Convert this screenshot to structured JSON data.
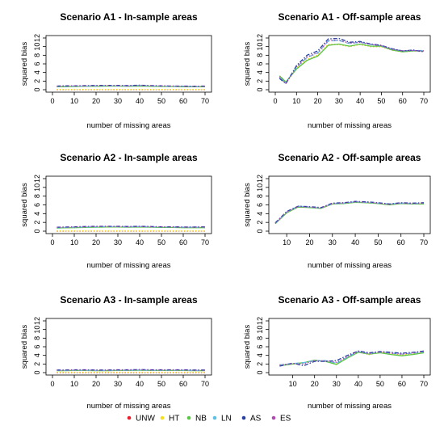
{
  "chart_data": [
    {
      "type": "line",
      "title": "Scenario A1 - In-sample areas",
      "xlabel": "number of missing areas",
      "ylabel": "squared bias",
      "xlim": [
        0,
        70
      ],
      "ylim": [
        0,
        12
      ],
      "xticks": [
        0,
        10,
        20,
        30,
        40,
        50,
        60,
        70
      ],
      "yticks": [
        0,
        2,
        4,
        6,
        8,
        10,
        12
      ],
      "x": [
        2,
        5,
        10,
        15,
        20,
        25,
        30,
        35,
        40,
        45,
        50,
        55,
        60,
        65,
        70
      ],
      "series": [
        {
          "key": "UNW",
          "values": [
            0.0,
            0.0,
            0.0,
            0.0,
            0.0,
            0.0,
            0.0,
            0.0,
            0.0,
            0.0,
            0.0,
            0.0,
            0.0,
            0.0,
            0.0
          ]
        },
        {
          "key": "HT",
          "values": [
            0.05,
            0.05,
            0.05,
            0.05,
            0.05,
            0.05,
            0.05,
            0.05,
            0.05,
            0.05,
            0.05,
            0.05,
            0.05,
            0.05,
            0.05
          ]
        },
        {
          "key": "NB",
          "values": [
            0.7,
            0.7,
            0.75,
            0.8,
            0.8,
            0.85,
            0.85,
            0.8,
            0.85,
            0.8,
            0.75,
            0.75,
            0.7,
            0.7,
            0.7
          ]
        },
        {
          "key": "LN",
          "values": [
            0.75,
            0.8,
            0.85,
            0.85,
            0.9,
            0.95,
            0.9,
            0.9,
            1.0,
            0.9,
            0.85,
            0.8,
            0.8,
            0.75,
            0.75
          ]
        },
        {
          "key": "AS",
          "values": [
            0.85,
            0.9,
            0.9,
            0.95,
            1.0,
            1.0,
            1.0,
            0.95,
            1.05,
            0.95,
            0.9,
            0.85,
            0.85,
            0.8,
            0.85
          ]
        },
        {
          "key": "ES",
          "values": [
            0.8,
            0.85,
            0.9,
            0.9,
            0.95,
            1.0,
            0.95,
            0.9,
            1.0,
            0.95,
            0.9,
            0.85,
            0.8,
            0.8,
            0.8
          ]
        }
      ]
    },
    {
      "type": "line",
      "title": "Scenario A1 - Off-sample areas",
      "xlabel": "number of missing areas",
      "ylabel": "squared bias",
      "xlim": [
        0,
        70
      ],
      "ylim": [
        0,
        12
      ],
      "xticks": [
        0,
        10,
        20,
        30,
        40,
        50,
        60,
        70
      ],
      "yticks": [
        0,
        2,
        4,
        6,
        8,
        10,
        12
      ],
      "x": [
        2,
        5,
        10,
        15,
        20,
        25,
        30,
        35,
        40,
        45,
        50,
        55,
        60,
        65,
        70
      ],
      "series": [
        {
          "key": "UNW",
          "values": [
            3.0,
            1.5,
            5.0,
            7.0,
            8.0,
            10.5,
            10.5,
            10.0,
            10.5,
            10.0,
            10.0,
            9.2,
            8.8,
            9.0,
            9.0
          ]
        },
        {
          "key": "HT",
          "values": [
            3.0,
            1.5,
            5.0,
            7.0,
            8.0,
            10.5,
            10.5,
            10.0,
            10.5,
            10.0,
            10.0,
            9.2,
            8.8,
            9.0,
            9.0
          ]
        },
        {
          "key": "NB",
          "values": [
            3.2,
            1.8,
            4.8,
            6.8,
            7.8,
            10.3,
            10.6,
            10.1,
            10.6,
            10.1,
            10.1,
            9.2,
            8.8,
            9.0,
            9.0
          ]
        },
        {
          "key": "LN",
          "values": [
            2.8,
            1.6,
            5.2,
            7.5,
            8.5,
            11.3,
            11.4,
            10.7,
            11.0,
            10.5,
            10.2,
            9.4,
            9.0,
            9.1,
            9.1
          ]
        },
        {
          "key": "AS",
          "values": [
            2.6,
            1.4,
            5.6,
            8.0,
            9.0,
            11.8,
            11.9,
            11.0,
            11.2,
            10.6,
            10.3,
            9.5,
            9.0,
            9.2,
            8.8
          ]
        },
        {
          "key": "ES",
          "values": [
            3.0,
            1.5,
            5.3,
            7.6,
            8.6,
            11.4,
            11.5,
            10.8,
            11.0,
            10.5,
            10.2,
            9.4,
            9.0,
            9.1,
            9.0
          ]
        }
      ]
    },
    {
      "type": "line",
      "title": "Scenario A2 - In-sample areas",
      "xlabel": "number of missing areas",
      "ylabel": "squared bias",
      "xlim": [
        0,
        70
      ],
      "ylim": [
        0,
        12
      ],
      "xticks": [
        0,
        10,
        20,
        30,
        40,
        50,
        60,
        70
      ],
      "yticks": [
        0,
        2,
        4,
        6,
        8,
        10,
        12
      ],
      "x": [
        2,
        5,
        10,
        15,
        20,
        25,
        30,
        35,
        40,
        45,
        50,
        55,
        60,
        65,
        70
      ],
      "series": [
        {
          "key": "UNW",
          "values": [
            0.0,
            0.0,
            0.0,
            0.0,
            0.0,
            0.0,
            0.0,
            0.0,
            0.0,
            0.0,
            0.0,
            0.0,
            0.0,
            0.0,
            0.0
          ]
        },
        {
          "key": "HT",
          "values": [
            0.05,
            0.05,
            0.05,
            0.05,
            0.05,
            0.05,
            0.05,
            0.05,
            0.05,
            0.05,
            0.05,
            0.05,
            0.05,
            0.05,
            0.05
          ]
        },
        {
          "key": "NB",
          "values": [
            0.7,
            0.75,
            0.8,
            0.85,
            0.9,
            0.95,
            0.95,
            0.9,
            0.95,
            0.9,
            0.85,
            0.85,
            0.8,
            0.8,
            0.8
          ]
        },
        {
          "key": "LN",
          "values": [
            0.8,
            0.85,
            0.9,
            0.95,
            1.0,
            1.05,
            1.05,
            1.0,
            1.05,
            1.0,
            0.95,
            0.95,
            0.9,
            0.9,
            0.9
          ]
        },
        {
          "key": "AS",
          "values": [
            0.9,
            0.95,
            1.0,
            1.05,
            1.1,
            1.1,
            1.1,
            1.05,
            1.1,
            1.05,
            1.0,
            1.0,
            0.95,
            0.95,
            1.0
          ]
        },
        {
          "key": "ES",
          "values": [
            0.85,
            0.9,
            0.95,
            1.0,
            1.05,
            1.1,
            1.05,
            1.0,
            1.05,
            1.0,
            1.0,
            0.95,
            0.9,
            0.9,
            0.95
          ]
        }
      ]
    },
    {
      "type": "line",
      "title": "Scenario A2 - Off-sample areas",
      "xlabel": "number of missing areas",
      "ylabel": "squared bias",
      "xlim": [
        5,
        70
      ],
      "ylim": [
        0,
        12
      ],
      "xticks": [
        10,
        20,
        30,
        40,
        50,
        60,
        70
      ],
      "yticks": [
        0,
        2,
        4,
        6,
        8,
        10,
        12
      ],
      "x": [
        5,
        10,
        15,
        20,
        25,
        30,
        35,
        40,
        45,
        50,
        55,
        60,
        65,
        70
      ],
      "series": [
        {
          "key": "UNW",
          "values": [
            1.8,
            4.3,
            5.6,
            5.5,
            5.3,
            6.3,
            6.4,
            6.7,
            6.6,
            6.4,
            6.1,
            6.4,
            6.3,
            6.3
          ]
        },
        {
          "key": "HT",
          "values": [
            1.8,
            4.3,
            5.6,
            5.5,
            5.3,
            6.3,
            6.4,
            6.7,
            6.6,
            6.4,
            6.1,
            6.4,
            6.3,
            6.3
          ]
        },
        {
          "key": "NB",
          "values": [
            1.7,
            4.2,
            5.5,
            5.4,
            5.2,
            6.2,
            6.3,
            6.6,
            6.5,
            6.3,
            6.0,
            6.3,
            6.2,
            6.2
          ]
        },
        {
          "key": "LN",
          "values": [
            1.8,
            4.4,
            5.7,
            5.5,
            5.3,
            6.3,
            6.4,
            6.7,
            6.6,
            6.4,
            6.2,
            6.4,
            6.3,
            6.4
          ]
        },
        {
          "key": "AS",
          "values": [
            1.9,
            4.5,
            5.7,
            5.6,
            5.4,
            6.4,
            6.5,
            6.8,
            6.7,
            6.5,
            6.2,
            6.5,
            6.4,
            6.5
          ]
        },
        {
          "key": "ES",
          "values": [
            1.8,
            4.4,
            5.6,
            5.5,
            5.3,
            6.3,
            6.4,
            6.7,
            6.6,
            6.4,
            6.1,
            6.4,
            6.3,
            6.4
          ]
        }
      ]
    },
    {
      "type": "line",
      "title": "Scenario A3 - In-sample areas",
      "xlabel": "number of missing areas",
      "ylabel": "squared bias",
      "xlim": [
        0,
        70
      ],
      "ylim": [
        0,
        12
      ],
      "xticks": [
        0,
        10,
        20,
        30,
        40,
        50,
        60,
        70
      ],
      "yticks": [
        0,
        2,
        4,
        6,
        8,
        10,
        12
      ],
      "x": [
        2,
        5,
        10,
        15,
        20,
        25,
        30,
        35,
        40,
        45,
        50,
        55,
        60,
        65,
        70
      ],
      "series": [
        {
          "key": "UNW",
          "values": [
            0.0,
            0.0,
            0.0,
            0.0,
            0.0,
            0.0,
            0.0,
            0.0,
            0.0,
            0.0,
            0.0,
            0.0,
            0.0,
            0.0,
            0.0
          ]
        },
        {
          "key": "HT",
          "values": [
            0.1,
            0.1,
            0.1,
            0.1,
            0.1,
            0.1,
            0.1,
            0.1,
            0.1,
            0.1,
            0.1,
            0.1,
            0.1,
            0.1,
            0.1
          ]
        },
        {
          "key": "NB",
          "values": [
            0.45,
            0.45,
            0.5,
            0.5,
            0.45,
            0.45,
            0.5,
            0.5,
            0.55,
            0.5,
            0.5,
            0.5,
            0.5,
            0.45,
            0.45
          ]
        },
        {
          "key": "LN",
          "values": [
            0.5,
            0.5,
            0.55,
            0.55,
            0.5,
            0.5,
            0.55,
            0.55,
            0.6,
            0.55,
            0.55,
            0.55,
            0.55,
            0.5,
            0.5
          ]
        },
        {
          "key": "AS",
          "values": [
            0.6,
            0.6,
            0.65,
            0.65,
            0.6,
            0.6,
            0.65,
            0.65,
            0.7,
            0.65,
            0.65,
            0.65,
            0.65,
            0.6,
            0.6
          ]
        },
        {
          "key": "ES",
          "values": [
            0.55,
            0.55,
            0.6,
            0.6,
            0.55,
            0.55,
            0.6,
            0.6,
            0.65,
            0.6,
            0.6,
            0.6,
            0.6,
            0.55,
            0.55
          ]
        }
      ]
    },
    {
      "type": "line",
      "title": "Scenario A3 - Off-sample areas",
      "xlabel": "number of missing areas",
      "ylabel": "squared bias",
      "xlim": [
        2,
        70
      ],
      "ylim": [
        0,
        12
      ],
      "xticks": [
        10,
        20,
        30,
        40,
        50,
        60,
        70
      ],
      "yticks": [
        0,
        2,
        4,
        6,
        8,
        10,
        12
      ],
      "x": [
        4,
        10,
        15,
        20,
        25,
        30,
        35,
        40,
        45,
        50,
        55,
        60,
        65,
        70
      ],
      "series": [
        {
          "key": "UNW",
          "values": [
            1.8,
            2.0,
            2.3,
            2.8,
            2.7,
            2.0,
            3.5,
            4.8,
            4.2,
            4.7,
            4.3,
            4.1,
            4.4,
            4.7
          ]
        },
        {
          "key": "HT",
          "values": [
            1.8,
            2.0,
            2.3,
            2.8,
            2.7,
            2.0,
            3.5,
            4.8,
            4.2,
            4.7,
            4.3,
            4.1,
            4.4,
            4.7
          ]
        },
        {
          "key": "NB",
          "values": [
            1.6,
            2.0,
            2.3,
            2.9,
            2.6,
            1.9,
            3.4,
            4.7,
            4.3,
            4.6,
            4.2,
            3.9,
            4.2,
            4.6
          ]
        },
        {
          "key": "LN",
          "values": [
            1.8,
            2.1,
            2.3,
            2.8,
            2.8,
            2.2,
            3.6,
            4.9,
            4.4,
            4.8,
            4.5,
            4.3,
            4.5,
            4.8
          ]
        },
        {
          "key": "AS",
          "values": [
            1.5,
            2.2,
            1.6,
            2.6,
            2.6,
            2.8,
            4.0,
            5.0,
            4.6,
            4.9,
            4.7,
            4.5,
            4.7,
            5.0
          ]
        },
        {
          "key": "ES",
          "values": [
            1.7,
            2.1,
            2.0,
            2.8,
            2.7,
            2.4,
            3.7,
            4.9,
            4.4,
            4.8,
            4.5,
            4.3,
            4.6,
            4.9
          ]
        }
      ]
    }
  ],
  "legend": {
    "placement": "bottom",
    "entries": [
      {
        "key": "UNW",
        "label": "UNW",
        "color": "#e8202e",
        "dash": "dotted"
      },
      {
        "key": "HT",
        "label": "HT",
        "color": "#f5df1c",
        "dash": "dotted"
      },
      {
        "key": "NB",
        "label": "NB",
        "color": "#5bc545",
        "dash": "solid"
      },
      {
        "key": "LN",
        "label": "LN",
        "color": "#5bc0e3",
        "dash": "longdash"
      },
      {
        "key": "AS",
        "label": "AS",
        "color": "#2640a0",
        "dash": "dashdot"
      },
      {
        "key": "ES",
        "label": "ES",
        "color": "#b04ab3",
        "dash": "dotted"
      }
    ]
  }
}
